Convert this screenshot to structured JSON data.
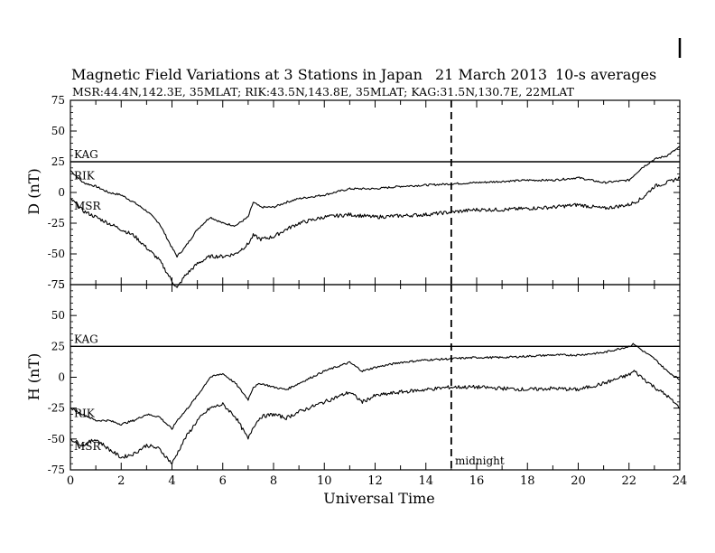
{
  "header": {
    "title": "Magnetic Field Variations at 3 Stations in Japan",
    "date": "21 March   2013",
    "averaging": "10-s averages",
    "stations": "MSR:44.4N,142.3E, 35MLAT;   RIK:43.5N,143.8E, 35MLAT;   KAG:31.5N,130.7E, 22MLAT"
  },
  "annotation": {
    "midnight": "midnight"
  },
  "chart_data": [
    {
      "type": "line",
      "panel": "top",
      "ylabel": "D (nT)",
      "xlabel": "Universal Time",
      "xlim": [
        0,
        24
      ],
      "ylim": [
        -75,
        75
      ],
      "xticks": [
        "0",
        "2",
        "4",
        "6",
        "8",
        "10",
        "12",
        "14",
        "16",
        "18",
        "20",
        "22",
        "24"
      ],
      "yticks": [
        "75",
        "50",
        "25",
        "0",
        "-25",
        "-50",
        "-75"
      ],
      "vline_x": 15,
      "series": [
        {
          "name": "KAG",
          "x": [
            0,
            24
          ],
          "y": [
            25,
            25
          ]
        },
        {
          "name": "RIK",
          "x": [
            0,
            0.5,
            1,
            1.5,
            2,
            2.5,
            3,
            3.5,
            4,
            4.2,
            4.5,
            5,
            5.5,
            6,
            6.5,
            7,
            7.2,
            7.5,
            8,
            8.5,
            9,
            10,
            11,
            12,
            13,
            14,
            15,
            16,
            17,
            18,
            19,
            20,
            21,
            22,
            22.5,
            23,
            23.5,
            24
          ],
          "y": [
            18,
            8,
            5,
            0,
            -2,
            -8,
            -15,
            -25,
            -45,
            -52,
            -45,
            -30,
            -20,
            -25,
            -27,
            -20,
            -8,
            -12,
            -12,
            -8,
            -5,
            -2,
            3,
            3,
            5,
            6,
            7,
            8,
            9,
            10,
            10,
            12,
            8,
            10,
            20,
            27,
            30,
            37
          ]
        },
        {
          "name": "MSR",
          "x": [
            0,
            0.5,
            1,
            1.5,
            2,
            2.5,
            3,
            3.5,
            4,
            4.2,
            4.5,
            5,
            5.5,
            6,
            6.5,
            7,
            7.2,
            7.5,
            8,
            8.5,
            9,
            10,
            11,
            12,
            13,
            14,
            15,
            16,
            17,
            18,
            19,
            20,
            21,
            22,
            22.5,
            23,
            23.5,
            24
          ],
          "y": [
            -5,
            -15,
            -20,
            -25,
            -30,
            -35,
            -45,
            -55,
            -72,
            -78,
            -68,
            -58,
            -52,
            -52,
            -50,
            -42,
            -35,
            -38,
            -36,
            -30,
            -25,
            -20,
            -18,
            -20,
            -19,
            -18,
            -16,
            -14,
            -14,
            -13,
            -12,
            -10,
            -13,
            -10,
            -5,
            5,
            8,
            12
          ]
        }
      ]
    },
    {
      "type": "line",
      "panel": "bottom",
      "ylabel": "H (nT)",
      "xlabel": "Universal Time",
      "xlim": [
        0,
        24
      ],
      "ylim": [
        -75,
        75
      ],
      "xticks": [
        "0",
        "2",
        "4",
        "6",
        "8",
        "10",
        "12",
        "14",
        "16",
        "18",
        "20",
        "22",
        "24"
      ],
      "yticks": [
        "75",
        "50",
        "25",
        "0",
        "-25",
        "-50",
        "-75"
      ],
      "vline_x": 15,
      "series": [
        {
          "name": "KAG",
          "x": [
            0,
            24
          ],
          "y": [
            25,
            25
          ]
        },
        {
          "name": "RIK",
          "x": [
            0,
            0.5,
            1,
            1.5,
            2,
            2.5,
            3,
            3.5,
            4,
            4.2,
            4.5,
            5,
            5.5,
            6,
            6.5,
            7,
            7.2,
            7.5,
            8,
            8.5,
            9,
            10,
            11,
            11.5,
            12,
            13,
            14,
            15,
            16,
            17,
            18,
            19,
            20,
            21,
            22,
            22.2,
            22.5,
            23,
            23.5,
            24
          ],
          "y": [
            -25,
            -30,
            -35,
            -35,
            -38,
            -35,
            -30,
            -32,
            -42,
            -35,
            -28,
            -15,
            0,
            3,
            -5,
            -18,
            -8,
            -5,
            -8,
            -10,
            -5,
            5,
            12,
            5,
            8,
            12,
            14,
            15,
            16,
            16,
            17,
            18,
            18,
            20,
            25,
            27,
            22,
            15,
            5,
            -2
          ]
        },
        {
          "name": "MSR",
          "x": [
            0,
            0.5,
            1,
            1.5,
            2,
            2.5,
            3,
            3.5,
            4,
            4.2,
            4.5,
            5,
            5.5,
            6,
            6.5,
            7,
            7.2,
            7.5,
            8,
            8.5,
            9,
            10,
            11,
            11.5,
            12,
            13,
            14,
            15,
            16,
            17,
            18,
            19,
            20,
            21,
            22,
            22.2,
            22.5,
            23,
            23.5,
            24
          ],
          "y": [
            -50,
            -55,
            -50,
            -58,
            -65,
            -62,
            -55,
            -58,
            -70,
            -62,
            -50,
            -35,
            -25,
            -22,
            -32,
            -50,
            -40,
            -32,
            -30,
            -33,
            -28,
            -20,
            -12,
            -20,
            -15,
            -12,
            -10,
            -8,
            -8,
            -9,
            -10,
            -9,
            -10,
            -5,
            2,
            5,
            0,
            -8,
            -15,
            -25
          ]
        }
      ]
    }
  ]
}
